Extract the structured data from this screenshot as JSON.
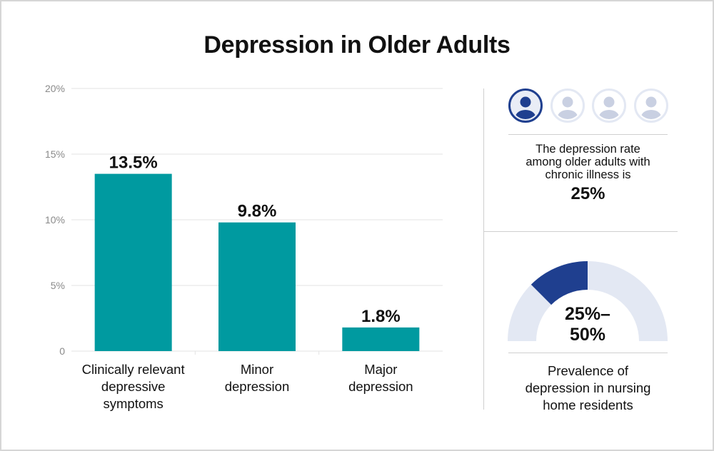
{
  "title": "Depression in Older Adults",
  "colors": {
    "bar": "#009aa0",
    "accent": "#1f3f8f",
    "light": "#e3e8f3",
    "avatar_light_figure": "#c9d0e2",
    "grid": "#e3e3e3"
  },
  "chart_data": {
    "type": "bar",
    "categories": [
      "Clinically relevant\ndepressive\nsymptoms",
      "Minor\ndepression",
      "Major\ndepression"
    ],
    "values": [
      13.5,
      9.8,
      1.8
    ],
    "value_labels": [
      "13.5%",
      "9.8%",
      "1.8%"
    ],
    "y_ticks": [
      0,
      5,
      10,
      15,
      20
    ],
    "y_tick_labels": [
      "0",
      "5%",
      "10%",
      "15%",
      "20%"
    ],
    "ylim": [
      0,
      20
    ],
    "grid": true
  },
  "side_panel": {
    "avatars": [
      {
        "icon": "person-icon",
        "highlighted": true
      },
      {
        "icon": "person-icon",
        "highlighted": false
      },
      {
        "icon": "person-icon",
        "highlighted": false
      },
      {
        "icon": "person-icon",
        "highlighted": false
      }
    ],
    "chronic_illness_text": "The depression rate\namong older adults with\nchronic illness is",
    "chronic_illness_value": "25%",
    "nursing_home": {
      "gauge_range": [
        0.25,
        0.5
      ],
      "value_label": "25%–\n50%",
      "caption": "Prevalence of\ndepression in nursing\nhome residents"
    }
  }
}
